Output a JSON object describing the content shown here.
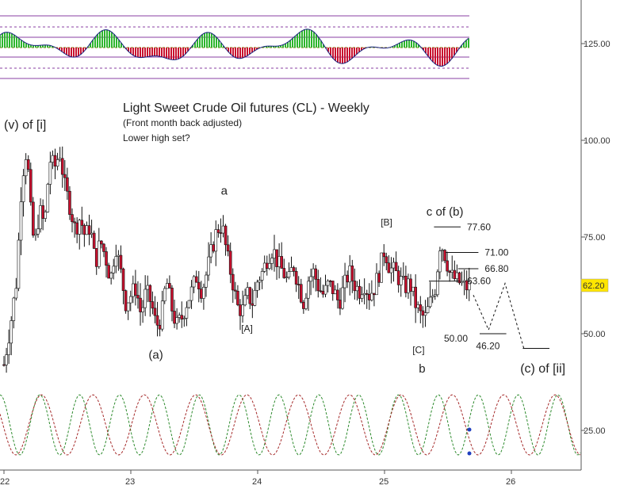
{
  "chart_data": {
    "type": "candlestick",
    "title": "Light Sweet Crude Oil futures (CL) - Weekly",
    "subtitle": "(Front month back adjusted)",
    "note": "Lower high set?",
    "x_ticks": [
      "22",
      "23",
      "24",
      "25",
      "26"
    ],
    "y_ticks": [
      {
        "label": "125.00",
        "value": 125
      },
      {
        "label": "100.00",
        "value": 100
      },
      {
        "label": "75.00",
        "value": 75
      },
      {
        "label": "50.00",
        "value": 50
      },
      {
        "label": "25.00",
        "value": 25
      }
    ],
    "last_price": {
      "label": "62.20",
      "value": 62.2
    },
    "ylim": [
      19,
      133
    ],
    "xlim": [
      22.0,
      26.55
    ],
    "price_path": [
      [
        22.0,
        42
      ],
      [
        22.05,
        52
      ],
      [
        22.1,
        64
      ],
      [
        22.14,
        90
      ],
      [
        22.18,
        98
      ],
      [
        22.21,
        82
      ],
      [
        22.24,
        72
      ],
      [
        22.28,
        82
      ],
      [
        22.32,
        78
      ],
      [
        22.36,
        95
      ],
      [
        22.4,
        93
      ],
      [
        22.44,
        97
      ],
      [
        22.48,
        88
      ],
      [
        22.52,
        83
      ],
      [
        22.56,
        77
      ],
      [
        22.6,
        80
      ],
      [
        22.64,
        75
      ],
      [
        22.68,
        78
      ],
      [
        22.72,
        68
      ],
      [
        22.76,
        74
      ],
      [
        22.8,
        70
      ],
      [
        22.84,
        64
      ],
      [
        22.88,
        73
      ],
      [
        22.92,
        66
      ],
      [
        22.96,
        58
      ],
      [
        23.0,
        60
      ],
      [
        23.04,
        62
      ],
      [
        23.08,
        55
      ],
      [
        23.12,
        61
      ],
      [
        23.16,
        58
      ],
      [
        23.2,
        52
      ],
      [
        23.24,
        54
      ],
      [
        23.28,
        64
      ],
      [
        23.32,
        57
      ],
      [
        23.36,
        52
      ],
      [
        23.4,
        54
      ],
      [
        23.44,
        58
      ],
      [
        23.48,
        61
      ],
      [
        23.52,
        65
      ],
      [
        23.56,
        61
      ],
      [
        23.6,
        66
      ],
      [
        23.64,
        72
      ],
      [
        23.68,
        77
      ],
      [
        23.72,
        78
      ],
      [
        23.76,
        70
      ],
      [
        23.8,
        64
      ],
      [
        23.84,
        57
      ],
      [
        23.88,
        56
      ],
      [
        23.92,
        60
      ],
      [
        23.96,
        58
      ],
      [
        24.0,
        64
      ],
      [
        24.04,
        66
      ],
      [
        24.08,
        70
      ],
      [
        24.12,
        72
      ],
      [
        24.16,
        68
      ],
      [
        24.2,
        66
      ],
      [
        24.24,
        63
      ],
      [
        24.28,
        68
      ],
      [
        24.32,
        63
      ],
      [
        24.36,
        58
      ],
      [
        24.4,
        64
      ],
      [
        24.44,
        66
      ],
      [
        24.48,
        62
      ],
      [
        24.52,
        60
      ],
      [
        24.56,
        63
      ],
      [
        24.6,
        61
      ],
      [
        24.64,
        58
      ],
      [
        24.68,
        62
      ],
      [
        24.72,
        66
      ],
      [
        24.76,
        63
      ],
      [
        24.8,
        61
      ],
      [
        24.84,
        63
      ],
      [
        24.88,
        60
      ],
      [
        24.92,
        62
      ],
      [
        24.96,
        66
      ],
      [
        25.0,
        72
      ],
      [
        25.04,
        67
      ],
      [
        25.08,
        66
      ],
      [
        25.12,
        64
      ],
      [
        25.16,
        62
      ],
      [
        25.2,
        63
      ],
      [
        25.24,
        58
      ],
      [
        25.28,
        55
      ],
      [
        25.32,
        54
      ],
      [
        25.36,
        58
      ],
      [
        25.4,
        62
      ],
      [
        25.44,
        74
      ],
      [
        25.48,
        70
      ],
      [
        25.52,
        65
      ],
      [
        25.56,
        64
      ],
      [
        25.6,
        63
      ],
      [
        25.64,
        62
      ],
      [
        25.68,
        62.2
      ]
    ],
    "labels": [
      {
        "id": "wave_v_i",
        "text": "(v) of [i]",
        "x": 22.0,
        "y": 103.0,
        "size": 16
      },
      {
        "id": "wave_a",
        "text": "a",
        "x": 23.71,
        "y": 86.0,
        "size": 15
      },
      {
        "id": "wave_pa",
        "text": "(a)",
        "x": 23.14,
        "y": 43.5,
        "size": 15
      },
      {
        "id": "wave_A",
        "text": "[A]",
        "x": 23.87,
        "y": 50.5,
        "size": 12
      },
      {
        "id": "wave_B",
        "text": "[B]",
        "x": 24.97,
        "y": 78.0,
        "size": 12
      },
      {
        "id": "wave_C",
        "text": "[C]",
        "x": 25.22,
        "y": 45.0,
        "size": 12
      },
      {
        "id": "wave_b",
        "text": "b",
        "x": 25.27,
        "y": 40.0,
        "size": 15
      },
      {
        "id": "wave_cb",
        "text": "c of (b)",
        "x": 25.33,
        "y": 80.5,
        "size": 15
      },
      {
        "id": "wave_cii",
        "text": "(c) of [ii]",
        "x": 26.07,
        "y": 40.0,
        "size": 16
      }
    ],
    "levels": [
      {
        "value": 77.6,
        "label": "77.60",
        "x1": 25.39,
        "x2": 25.6
      },
      {
        "value": 71.0,
        "label": "71.00",
        "x1": 25.48,
        "x2": 25.74
      },
      {
        "value": 66.8,
        "label": "66.80",
        "x1": 25.58,
        "x2": 25.74
      },
      {
        "value": 63.6,
        "label": "63.60",
        "x1": 25.35,
        "x2": 25.6
      },
      {
        "value": 50.0,
        "label": "50.00",
        "x1": 25.75,
        "x2": 25.96
      },
      {
        "value": 46.2,
        "label": "46.20",
        "x1": 26.09,
        "x2": 26.3
      }
    ],
    "projection": [
      [
        25.7,
        60
      ],
      [
        25.82,
        51
      ],
      [
        25.95,
        63
      ],
      [
        26.1,
        46
      ]
    ],
    "oscillator": {
      "series": [
        "green",
        "red"
      ],
      "pane": "top"
    },
    "cycles": {
      "series": [
        "green",
        "red"
      ],
      "pane": "bottom",
      "marker_points": 2
    }
  }
}
